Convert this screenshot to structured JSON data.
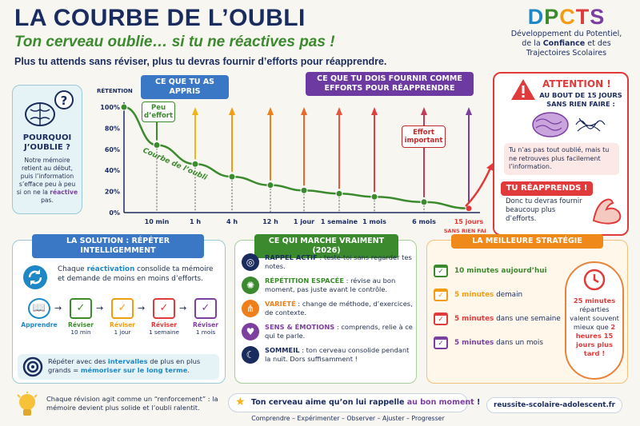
{
  "header": {
    "title": "LA COURBE DE L’OUBLI",
    "subtitle": "Ton cerveau oublie… si tu ne réactives pas !",
    "intro": "Plus tu attends sans réviser, plus tu devras fournir d’efforts pour réapprendre."
  },
  "logo": {
    "letters": [
      "D",
      "P",
      "C",
      "T",
      "S"
    ],
    "colors": [
      "#1e88c7",
      "#3c8a2e",
      "#f39c12",
      "#e03a3a",
      "#7b3fa0"
    ],
    "line1": "Développement du Potentiel,",
    "line2_pre": "de la ",
    "line2_bold": "Confiance",
    "line2_post": " et des",
    "line3": "Trajectoires Scolaires"
  },
  "why": {
    "title": "POURQUOI J’OUBLIE ?",
    "text_pre": "Notre mémoire retient au début, puis l’information s’efface peu à peu si on ne la ",
    "text_hl": "réactive",
    "text_post": " pas."
  },
  "chart_data": {
    "type": "line",
    "ylabel": "RÉTENTION",
    "yticks": [
      "100%",
      "80%",
      "60%",
      "40%",
      "20%",
      "0%"
    ],
    "ylim": [
      0,
      100
    ],
    "categories": [
      "10 min",
      "1 h",
      "4 h",
      "12 h",
      "1 jour",
      "1 semaine",
      "1 mois",
      "6 mois",
      "15 jours"
    ],
    "values": [
      64,
      46,
      34,
      26,
      21,
      18,
      15,
      10,
      4
    ],
    "start_value": 100,
    "series_label": "Courbe de l’oubli",
    "last_note": "SANS RIEN FAIRE",
    "label_learned": "CE QUE TU AS APPRIS",
    "label_effort": "CE QUE TU DOIS FOURNIR COMME EFFORTS POUR RÉAPPRENDRE",
    "low_effort": "Peu d’effort",
    "high_effort": "Effort important",
    "arrow_colors": [
      "#3c8a2e",
      "#f1b51c",
      "#f39c12",
      "#ef7f1a",
      "#e86a2a",
      "#e4573a",
      "#dd4142",
      "#c43a5a",
      "#7b3fa0"
    ]
  },
  "attention": {
    "title": "ATTENTION !",
    "sub": "AU BOUT DE 15 JOURS SANS RIEN FAIRE :",
    "text": "Tu n’as pas tout oublié, mais tu ne retrouves plus facilement l’information.",
    "relearn": "TU RÉAPPRENDS !",
    "relearn_text": "Donc tu devras fournir beaucoup plus d’efforts."
  },
  "solution": {
    "title": "LA SOLUTION : RÉPÉTER INTELLIGEMMENT",
    "text_pre": "Chaque ",
    "text_hl": "réactivation",
    "text_post": " consolide ta mémoire et demande de moins en moins d’efforts.",
    "steps": [
      {
        "l1": "Apprendre",
        "l2": "",
        "c": "#1e88c7"
      },
      {
        "l1": "Réviser",
        "l2": "10 min",
        "c": "#3c8a2e"
      },
      {
        "l1": "Réviser",
        "l2": "1 jour",
        "c": "#f39c12"
      },
      {
        "l1": "Réviser",
        "l2": "1 semaine",
        "c": "#e03a3a"
      },
      {
        "l1": "Réviser",
        "l2": "1 mois",
        "c": "#7b3fa0"
      }
    ],
    "foot_pre": "Répéter avec des ",
    "foot_hl1": "intervalles",
    "foot_mid": " de plus en plus grands = ",
    "foot_hl2": "mémoriser sur le long terme",
    "foot_post": "."
  },
  "works": {
    "title": "CE QUI MARCHE VRAIMENT (2026)",
    "items": [
      {
        "b": "RAPPEL ACTIF",
        "t": " : teste-toi sans regarder tes notes.",
        "c": "#1a2b5e"
      },
      {
        "b": "RÉPÉTITION ESPACÉE",
        "t": " : révise au bon moment, pas juste avant le contrôle.",
        "c": "#3c8a2e"
      },
      {
        "b": "VARIÉTÉ",
        "t": " : change de méthode, d’exercices, de contexte.",
        "c": "#ef7f1a"
      },
      {
        "b": "SENS & ÉMOTIONS",
        "t": " : comprends, relie à ce qui te parle.",
        "c": "#7b3fa0"
      },
      {
        "b": "SOMMEIL",
        "t": " : ton cerveau consolide pendant la nuit. Dors suffisamment !",
        "c": "#1a2b5e"
      }
    ]
  },
  "strategy": {
    "title": "LA MEILLEURE STRATÉGIE",
    "items": [
      {
        "b": "10 minutes aujourd’hui",
        "t": "",
        "c": "#3c8a2e"
      },
      {
        "b": "5 minutes",
        "t": " demain",
        "c": "#f39c12"
      },
      {
        "b": "5 minutes",
        "t": " dans une semaine",
        "c": "#e03a3a"
      },
      {
        "b": "5 minutes",
        "t": " dans un mois",
        "c": "#7b3fa0"
      }
    ],
    "note_hl1": "25 minutes",
    "note_mid": " réparties valent souvent mieux que ",
    "note_hl2": "2 heures 15 jours plus tard !"
  },
  "footer": {
    "bulb_text": "Chaque révision agit comme un “renforcement” : la mémoire devient plus solide et l’oubli ralentit.",
    "star_pre": "Ton cerveau aime qu’on lui rappelle ",
    "star_hl": "au bon moment",
    "star_post": " !",
    "motto": "Comprendre – Expérimenter – Observer – Ajuster – Progresser",
    "site": "reussite-scolaire-adolescent.fr"
  }
}
